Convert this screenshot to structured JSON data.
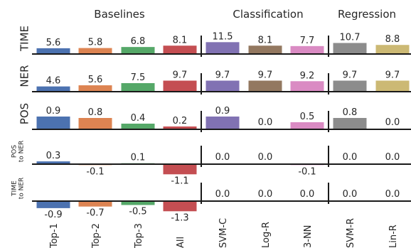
{
  "chart_data": {
    "type": "bar",
    "groups": [
      {
        "title": "Baselines",
        "categories": [
          "Top-1",
          "Top-2",
          "Top-3",
          "All"
        ]
      },
      {
        "title": "Classification",
        "categories": [
          "SVM-C",
          "Log-R",
          "3-NN"
        ]
      },
      {
        "title": "Regression",
        "categories": [
          "SVM-R",
          "Lin-R"
        ]
      }
    ],
    "categories": [
      "Top-1",
      "Top-2",
      "Top-3",
      "All",
      "SVM-C",
      "Log-R",
      "3-NN",
      "SVM-R",
      "Lin-R"
    ],
    "colors": {
      "Top-1": "#4c72b0",
      "Top-2": "#dd8452",
      "Top-3": "#55a868",
      "All": "#c44e52",
      "SVM-C": "#8172b3",
      "Log-R": "#937860",
      "3-NN": "#da8bc3",
      "SVM-R": "#8c8c8c",
      "Lin-R": "#ccb974"
    },
    "rows": [
      {
        "label": "TIME",
        "label_lines": [
          "TIME"
        ],
        "small": false,
        "values": [
          5.6,
          5.8,
          6.8,
          8.1,
          11.5,
          8.1,
          7.7,
          10.7,
          8.8
        ],
        "value_labels": [
          "5.6",
          "5.8",
          "6.8",
          "8.1",
          "11.5",
          "8.1",
          "7.7",
          "10.7",
          "8.8"
        ]
      },
      {
        "label": "NER",
        "label_lines": [
          "NER"
        ],
        "small": false,
        "values": [
          4.6,
          5.6,
          7.5,
          9.7,
          9.7,
          9.7,
          9.2,
          9.7,
          9.7
        ],
        "value_labels": [
          "4.6",
          "5.6",
          "7.5",
          "9.7",
          "9.7",
          "9.7",
          "9.2",
          "9.7",
          "9.7"
        ]
      },
      {
        "label": "POS",
        "label_lines": [
          "POS"
        ],
        "small": false,
        "values": [
          0.9,
          0.8,
          0.4,
          0.2,
          0.9,
          0.0,
          0.5,
          0.8,
          0.0
        ],
        "value_labels": [
          "0.9",
          "0.8",
          "0.4",
          "0.2",
          "0.9",
          "0.0",
          "0.5",
          "0.8",
          "0.0"
        ]
      },
      {
        "label": "POS to NER",
        "label_lines": [
          "POS",
          "to NER"
        ],
        "small": true,
        "values": [
          0.3,
          -0.1,
          0.1,
          -1.1,
          0.0,
          0.0,
          -0.1,
          0.0,
          0.0
        ],
        "value_labels": [
          "0.3",
          "-0.1",
          "0.1",
          "-1.1",
          "0.0",
          "0.0",
          "-0.1",
          "0.0",
          "0.0"
        ]
      },
      {
        "label": "TIME to NER",
        "label_lines": [
          "TIME",
          "to NER"
        ],
        "small": true,
        "values": [
          -0.9,
          -0.7,
          -0.5,
          -1.3,
          0.0,
          0.0,
          0.0,
          0.0,
          0.0
        ],
        "value_labels": [
          "-0.9",
          "-0.7",
          "-0.5",
          "-1.3",
          "0.0",
          "0.0",
          "0.0",
          "0.0",
          "0.0"
        ]
      }
    ]
  }
}
